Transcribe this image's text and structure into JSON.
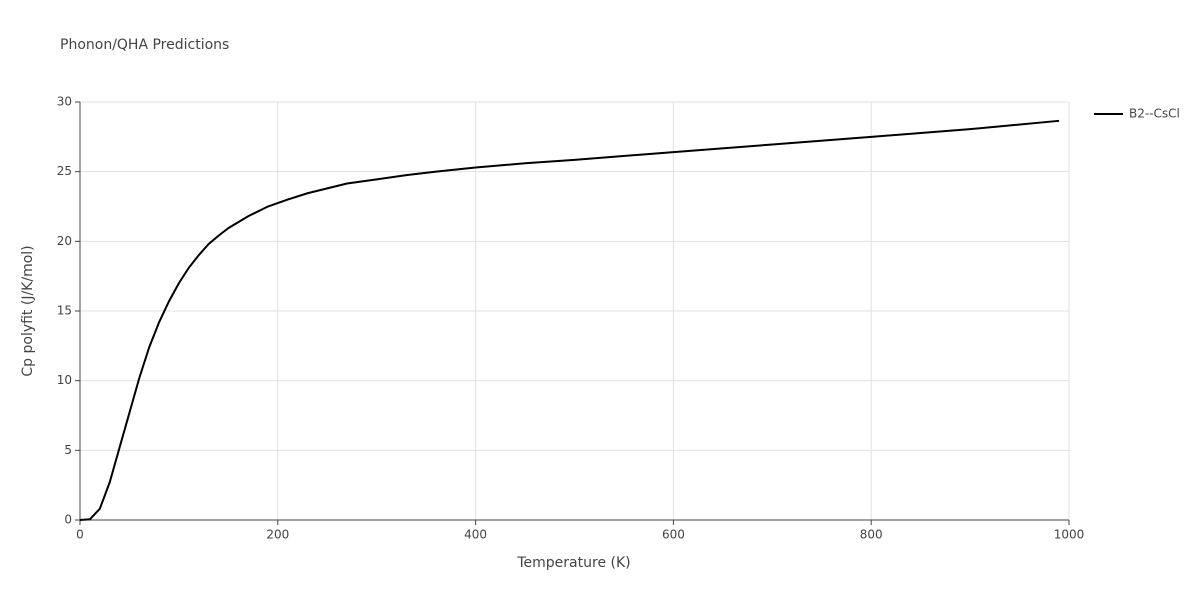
{
  "chart_data": {
    "type": "line",
    "title": "Phonon/QHA Predictions",
    "x_label": "Temperature (K)",
    "y_label": "Cp polyfit (J/K/mol)",
    "x": [
      0,
      10,
      20,
      30,
      40,
      50,
      60,
      70,
      80,
      90,
      100,
      110,
      120,
      130,
      140,
      150,
      170,
      190,
      210,
      230,
      250,
      270,
      300,
      330,
      360,
      400,
      450,
      500,
      600,
      700,
      800,
      900,
      990
    ],
    "series": [
      {
        "name": "B2--CsCl",
        "color": "#000000",
        "values": [
          0,
          0.05,
          0.8,
          2.7,
          5.2,
          7.7,
          10.2,
          12.4,
          14.2,
          15.7,
          17.0,
          18.1,
          19.0,
          19.8,
          20.4,
          20.95,
          21.8,
          22.5,
          23.0,
          23.45,
          23.8,
          24.15,
          24.45,
          24.75,
          25.0,
          25.3,
          25.6,
          25.85,
          26.4,
          26.95,
          27.5,
          28.05,
          28.65
        ]
      }
    ],
    "xlim": [
      0,
      1000
    ],
    "xticks": [
      0,
      200,
      400,
      600,
      800,
      1000
    ],
    "ylim": [
      0,
      30
    ],
    "yticks": [
      0,
      5,
      10,
      15,
      20,
      25,
      30
    ],
    "grid": true,
    "legend": "right"
  }
}
